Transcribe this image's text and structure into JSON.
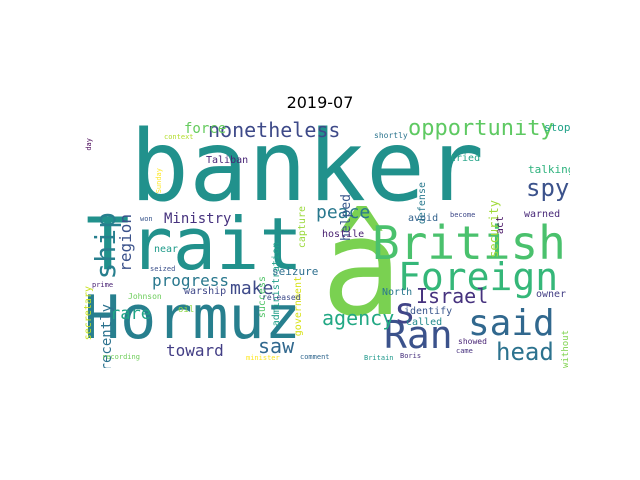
{
  "title": "2019-07",
  "words": [
    {
      "text": "banker",
      "color": "#21918c"
    },
    {
      "text": "â",
      "color": "#7ad151"
    },
    {
      "text": "Trait",
      "color": "#21918c"
    },
    {
      "text": "Hormuz",
      "color": "#277f8e"
    },
    {
      "text": "British",
      "color": "#4ac16d"
    },
    {
      "text": "Foreign",
      "color": "#35b779"
    },
    {
      "text": "Ran",
      "color": "#3b528b"
    },
    {
      "text": "said",
      "color": "#31688e"
    },
    {
      "text": "s",
      "color": "#414487"
    },
    {
      "text": "head",
      "color": "#2c728e"
    },
    {
      "text": "Israel",
      "color": "#46327e"
    },
    {
      "text": "ship",
      "color": "#277f8e"
    },
    {
      "text": "spy",
      "color": "#3b528b"
    },
    {
      "text": "opportunity",
      "color": "#5ec962"
    },
    {
      "text": "nonetheless",
      "color": "#3e4a89"
    },
    {
      "text": "agency",
      "color": "#22a884"
    },
    {
      "text": "peace",
      "color": "#2a788e"
    },
    {
      "text": "saw",
      "color": "#31688e"
    },
    {
      "text": "make",
      "color": "#3e4a89"
    },
    {
      "text": "progress",
      "color": "#2a788e"
    },
    {
      "text": "toward",
      "color": "#433e85"
    },
    {
      "text": "rare",
      "color": "#20a486"
    },
    {
      "text": "region",
      "color": "#3b528b"
    },
    {
      "text": "recently",
      "color": "#2c728e"
    },
    {
      "text": "security",
      "color": "#a0da39"
    },
    {
      "text": "Ministry",
      "color": "#46327e"
    },
    {
      "text": "force",
      "color": "#65cb5e"
    },
    {
      "text": "helped",
      "color": "#38588c"
    },
    {
      "text": "stop",
      "color": "#1fa187"
    },
    {
      "text": "talking",
      "color": "#2db27d"
    },
    {
      "text": "warned",
      "color": "#482878"
    },
    {
      "text": "Taliban",
      "color": "#482576"
    },
    {
      "text": "capture",
      "color": "#9bd93c"
    },
    {
      "text": "administration",
      "color": "#1f9e89"
    },
    {
      "text": "government",
      "color": "#d8e219"
    },
    {
      "text": "defense",
      "color": "#29798e"
    },
    {
      "text": "tried",
      "color": "#20a386"
    },
    {
      "text": "avoid",
      "color": "#33638d"
    },
    {
      "text": "hostile",
      "color": "#481f70"
    },
    {
      "text": "seizure",
      "color": "#2e6f8e"
    },
    {
      "text": "warship",
      "color": "#3f4788"
    },
    {
      "text": "near",
      "color": "#1e9b8a"
    },
    {
      "text": "success",
      "color": "#52c569"
    },
    {
      "text": "North",
      "color": "#2a788e"
    },
    {
      "text": "identify",
      "color": "#39558c"
    },
    {
      "text": "called",
      "color": "#238a8d"
    },
    {
      "text": "owner",
      "color": "#433e85"
    },
    {
      "text": "act",
      "color": "#471365"
    },
    {
      "text": "secretary",
      "color": "#c8e020"
    },
    {
      "text": "released",
      "color": "#3e4c8a"
    },
    {
      "text": "Johnson",
      "color": "#6ccd5a"
    },
    {
      "text": "oil",
      "color": "#8fd744"
    },
    {
      "text": "showed",
      "color": "#482475"
    },
    {
      "text": "came",
      "color": "#46307e"
    },
    {
      "text": "without",
      "color": "#7fd34e"
    },
    {
      "text": "shortly",
      "color": "#2b748e"
    },
    {
      "text": "context",
      "color": "#b2dd2d"
    },
    {
      "text": "day",
      "color": "#440154"
    },
    {
      "text": "Sunday",
      "color": "#fde725"
    },
    {
      "text": "won",
      "color": "#39568c"
    },
    {
      "text": "seized",
      "color": "#3c508b"
    },
    {
      "text": "prime",
      "color": "#482173"
    },
    {
      "text": "become",
      "color": "#3e4989"
    },
    {
      "text": "recording",
      "color": "#6ece58"
    },
    {
      "text": "minister",
      "color": "#fde725"
    },
    {
      "text": "comment",
      "color": "#31678e"
    },
    {
      "text": "Britain",
      "color": "#1f988b"
    },
    {
      "text": "Boris",
      "color": "#462f7c"
    }
  ]
}
